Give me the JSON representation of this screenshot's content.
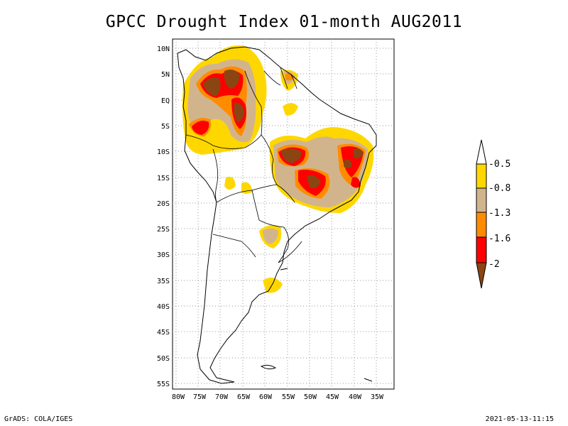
{
  "title": "GPCC Drought Index 01-month AUG2011",
  "footer": {
    "left": "GrADS: COLA/IGES",
    "right": "2021-05-13-11:15"
  },
  "map": {
    "lon_ticks": [
      "80W",
      "75W",
      "70W",
      "65W",
      "60W",
      "55W",
      "50W",
      "45W",
      "40W",
      "35W"
    ],
    "lat_ticks": [
      "10N",
      "5N",
      "EQ",
      "5S",
      "10S",
      "15S",
      "20S",
      "25S",
      "30S",
      "35S",
      "40S",
      "45S",
      "50S",
      "55S"
    ]
  },
  "legend": {
    "labels": [
      "-0.5",
      "-0.8",
      "-1.3",
      "-1.6",
      "-2"
    ],
    "colors": [
      "#ffffff",
      "#ffd700",
      "#d2b48c",
      "#ff8c00",
      "#ff0000",
      "#8b4513"
    ]
  },
  "colors": {
    "yellow": "#ffd700",
    "tan": "#d2b48c",
    "orange": "#ff8c00",
    "red": "#ff0000",
    "brown": "#8b4513"
  }
}
